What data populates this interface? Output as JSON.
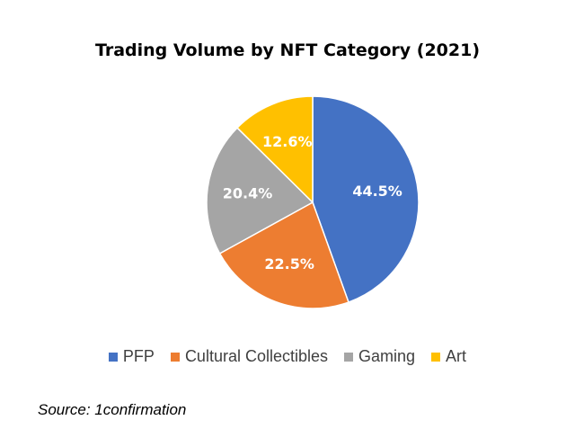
{
  "chart_data": {
    "type": "pie",
    "title": "Trading Volume by NFT Category (2021)",
    "categories": [
      "PFP",
      "Cultural Collectibles",
      "Gaming",
      "Art"
    ],
    "values": [
      44.5,
      22.5,
      20.4,
      12.6
    ],
    "labels": [
      "44.5%",
      "22.5%",
      "20.4%",
      "12.6%"
    ],
    "colors": [
      "#4472C4",
      "#ED7D31",
      "#A5A5A5",
      "#FFC000"
    ],
    "legend_position": "bottom",
    "start_angle": "12 o'clock",
    "direction": "clockwise"
  },
  "source": "Source: 1confirmation"
}
